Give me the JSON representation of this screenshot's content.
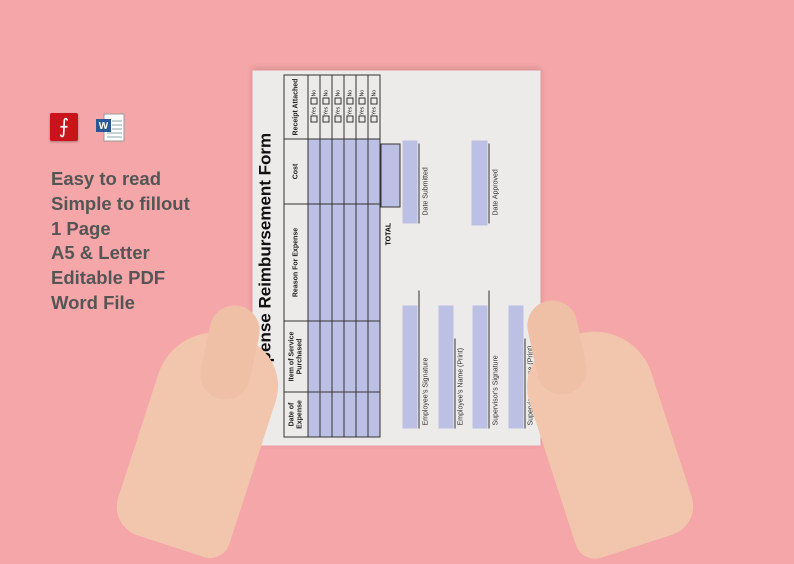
{
  "icons": {
    "pdf": "adobe-pdf-icon",
    "word": "word-document-icon"
  },
  "features": [
    "Easy to read",
    "Simple to fillout",
    "1 Page",
    "A5 & Letter",
    "Editable PDF",
    "Word File"
  ],
  "form": {
    "title": "Expense Reimbursement Form",
    "columns": [
      "Date of Expense",
      "Item of Service Purchased",
      "Reason For Expense",
      "Cost",
      "Receipt Attached"
    ],
    "yes": "Yes",
    "no": "No",
    "total": "TOTAL",
    "date_submitted": "Date Submitted",
    "date_approved": "Date Approved",
    "employee_signature": "Employee's Signature",
    "employee_name": "Employee's Name (Print)",
    "supervisor_signature": "Supervisor's Signature",
    "supervisor_name": "Supervisor's Name (Print)"
  },
  "colors": {
    "background": "#f5a6a8",
    "field": "#bcc0e4",
    "text": "#555555"
  }
}
